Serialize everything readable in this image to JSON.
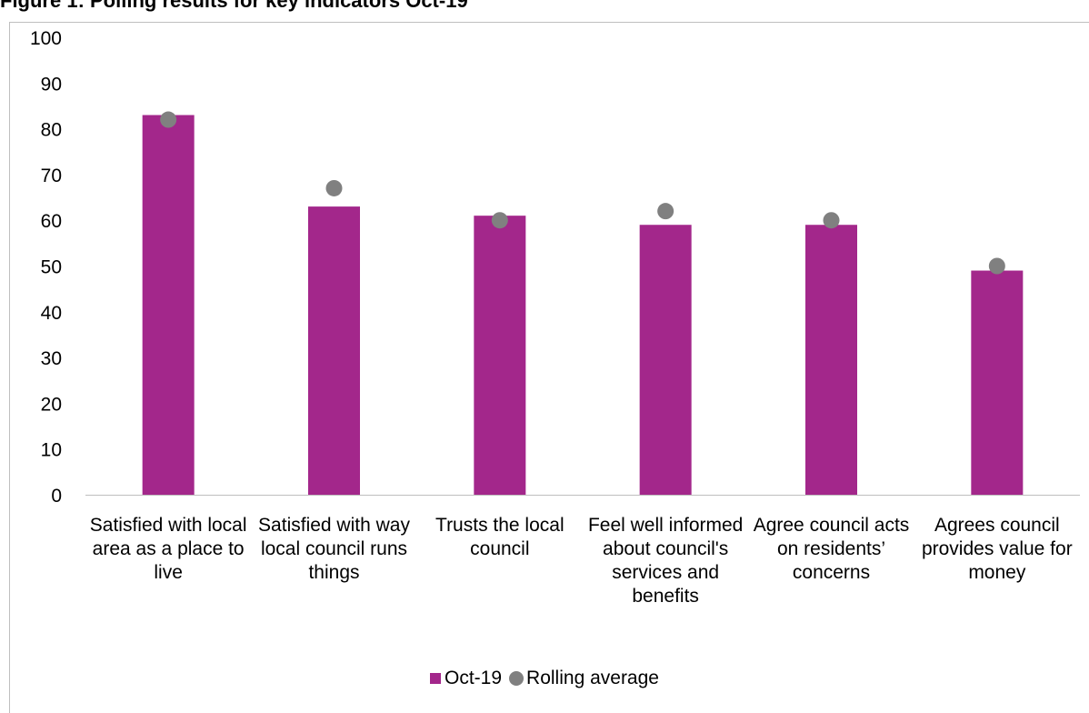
{
  "chart_data": {
    "type": "bar",
    "title": "Figure 1: Polling results for key indicators Oct-19",
    "categories": [
      "Satisfied with local area as a place to live",
      "Satisfied with way local council runs things",
      "Trusts the local council",
      "Feel well informed about council's services and benefits",
      "Agree council acts on residents’ concerns",
      "Agrees council provides value for money"
    ],
    "series": [
      {
        "name": "Oct-19",
        "type": "bar",
        "color": "#A3278B",
        "values": [
          83,
          63,
          61,
          59,
          59,
          49
        ]
      },
      {
        "name": "Rolling average",
        "type": "scatter",
        "color": "#808080",
        "values": [
          82,
          67,
          60,
          62,
          60,
          50
        ]
      }
    ],
    "yticks": [
      "0",
      "10",
      "20",
      "30",
      "40",
      "50",
      "60",
      "70",
      "80",
      "90",
      "100"
    ],
    "ylim": [
      0,
      100
    ],
    "grid": false,
    "legend": "bottom"
  }
}
